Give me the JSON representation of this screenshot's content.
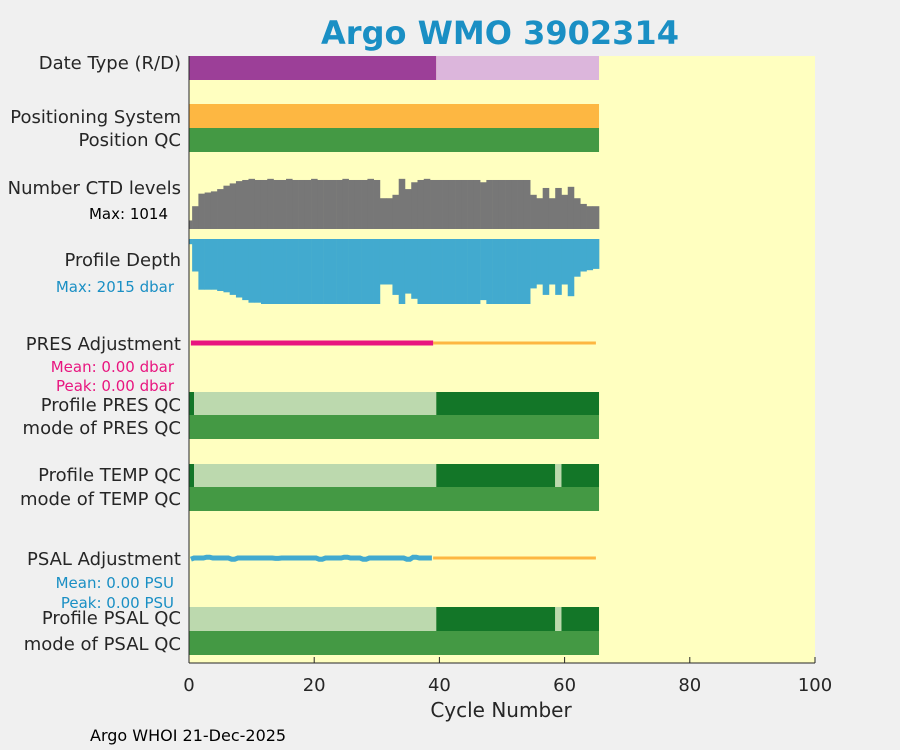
{
  "chart_data": {
    "type": "bar",
    "title": "Argo WMO 3902314",
    "xlabel": "Cycle Number",
    "xlim": [
      0,
      100
    ],
    "xticks": [
      0,
      20,
      40,
      60,
      80,
      100
    ],
    "footer": "Argo WHOI 21-Dec-2025",
    "colors": {
      "title": "#1a8fc4",
      "plot_bg": "#ffffc0",
      "purple_dark": "#9c3f98",
      "purple_light": "#dcb6dc",
      "orange": "#fdb742",
      "green_mid": "#449944",
      "green_dark": "#137628",
      "green_light": "#bcd9ae",
      "gray": "#777777",
      "blue": "#42aacf",
      "magenta": "#e8157f",
      "blue_text": "#1a8fc4"
    },
    "rows": [
      {
        "label": "Date Type (R/D)",
        "kind": "segments",
        "y": [
          56,
          80
        ],
        "segments": [
          {
            "from": 0,
            "to": 39.5,
            "color": "purple_dark"
          },
          {
            "from": 39.5,
            "to": 65.5,
            "color": "purple_light"
          }
        ]
      },
      {
        "label": "Positioning System",
        "kind": "segments",
        "y": [
          104,
          128
        ],
        "segments": [
          {
            "from": 0,
            "to": 65.5,
            "color": "orange"
          }
        ]
      },
      {
        "label": "Position QC",
        "kind": "segments",
        "y": [
          128,
          152
        ],
        "segments": [
          {
            "from": 0,
            "to": 65.5,
            "color": "green_mid"
          }
        ]
      },
      {
        "label": "Number CTD levels",
        "kind": "bars-up",
        "y": [
          172,
          229
        ],
        "color": "gray",
        "max_value": 1014,
        "sublabel": "Max: 1014",
        "sublabel_color": "#000000",
        "fractions": [
          0.15,
          0.4,
          0.62,
          0.64,
          0.66,
          0.7,
          0.76,
          0.8,
          0.84,
          0.86,
          0.88,
          0.86,
          0.86,
          0.88,
          0.86,
          0.86,
          0.88,
          0.86,
          0.86,
          0.86,
          0.88,
          0.86,
          0.86,
          0.86,
          0.86,
          0.88,
          0.86,
          0.86,
          0.86,
          0.88,
          0.86,
          0.54,
          0.54,
          0.6,
          0.88,
          0.7,
          0.82,
          0.86,
          0.88,
          0.86,
          0.86,
          0.86,
          0.86,
          0.86,
          0.86,
          0.86,
          0.86,
          0.82,
          0.86,
          0.86,
          0.86,
          0.86,
          0.86,
          0.86,
          0.86,
          0.6,
          0.54,
          0.72,
          0.54,
          0.72,
          0.6,
          0.74,
          0.54,
          0.44,
          0.4,
          0.4
        ]
      },
      {
        "label": "Profile Depth",
        "kind": "bars-down",
        "y": [
          239,
          304
        ],
        "color": "blue",
        "max_value": 2015,
        "sublabel": "Max: 2015 dbar",
        "sublabel_color": "#1a8fc4",
        "fractions": [
          0.08,
          0.5,
          0.78,
          0.78,
          0.78,
          0.8,
          0.82,
          0.86,
          0.9,
          0.94,
          0.98,
          0.98,
          1.0,
          1.0,
          1.0,
          1.0,
          1.0,
          1.0,
          1.0,
          1.0,
          1.0,
          1.0,
          1.0,
          1.0,
          1.0,
          1.0,
          1.0,
          1.0,
          1.0,
          1.0,
          1.0,
          0.7,
          0.7,
          0.86,
          1.0,
          0.84,
          0.92,
          1.0,
          1.0,
          1.0,
          1.0,
          1.0,
          1.0,
          1.0,
          1.0,
          1.0,
          1.0,
          0.94,
          1.0,
          1.0,
          1.0,
          1.0,
          1.0,
          1.0,
          1.0,
          0.76,
          0.7,
          0.86,
          0.7,
          0.86,
          0.7,
          0.88,
          0.58,
          0.5,
          0.48,
          0.46
        ]
      },
      {
        "label": "PRES Adjustment",
        "kind": "adjustment",
        "y": [
          343,
          343
        ],
        "adj_color": "magenta",
        "real_color": "orange",
        "adj_from": 0.3,
        "adj_to": 39,
        "real_to": 65,
        "sublabels": [
          "Mean: 0.00 dbar",
          "Peak: 0.00 dbar"
        ],
        "sublabel_color": "#e8157f"
      },
      {
        "label": "Profile PRES QC",
        "kind": "segments",
        "y": [
          392,
          415
        ],
        "segments": [
          {
            "from": 0,
            "to": 0.8,
            "color": "green_dark"
          },
          {
            "from": 0.8,
            "to": 39.5,
            "color": "green_light"
          },
          {
            "from": 39.5,
            "to": 65.5,
            "color": "green_dark"
          }
        ]
      },
      {
        "label": "mode of PRES QC",
        "kind": "segments",
        "y": [
          415,
          439
        ],
        "segments": [
          {
            "from": 0,
            "to": 65.5,
            "color": "green_mid"
          }
        ]
      },
      {
        "label": "Profile TEMP QC",
        "kind": "segments",
        "y": [
          464,
          487
        ],
        "segments": [
          {
            "from": 0,
            "to": 0.8,
            "color": "green_dark"
          },
          {
            "from": 0.8,
            "to": 39.5,
            "color": "green_light"
          },
          {
            "from": 39.5,
            "to": 58.5,
            "color": "green_dark"
          },
          {
            "from": 58.5,
            "to": 59.5,
            "color": "green_light"
          },
          {
            "from": 59.5,
            "to": 65.5,
            "color": "green_dark"
          }
        ]
      },
      {
        "label": "mode of TEMP QC",
        "kind": "segments",
        "y": [
          487,
          511
        ],
        "segments": [
          {
            "from": 0,
            "to": 65.5,
            "color": "green_mid"
          }
        ]
      },
      {
        "label": "PSAL Adjustment",
        "kind": "adjustment",
        "y": [
          558,
          558
        ],
        "adj_color": "blue",
        "real_color": "orange",
        "adj_from": 0.3,
        "adj_to": 39,
        "real_to": 65,
        "sublabels": [
          "Mean: 0.00 PSU",
          "Peak: 0.00 PSU"
        ],
        "sublabel_color": "#1a8fc4"
      },
      {
        "label": "Profile PSAL QC",
        "kind": "segments",
        "y": [
          607,
          631
        ],
        "segments": [
          {
            "from": 0,
            "to": 39.5,
            "color": "green_light"
          },
          {
            "from": 39.5,
            "to": 58.5,
            "color": "green_dark"
          },
          {
            "from": 58.5,
            "to": 59.5,
            "color": "green_light"
          },
          {
            "from": 59.5,
            "to": 65.5,
            "color": "green_dark"
          }
        ]
      },
      {
        "label": "mode of PSAL QC",
        "kind": "segments",
        "y": [
          631,
          655
        ],
        "segments": [
          {
            "from": 0,
            "to": 65.5,
            "color": "green_mid"
          }
        ]
      }
    ]
  }
}
